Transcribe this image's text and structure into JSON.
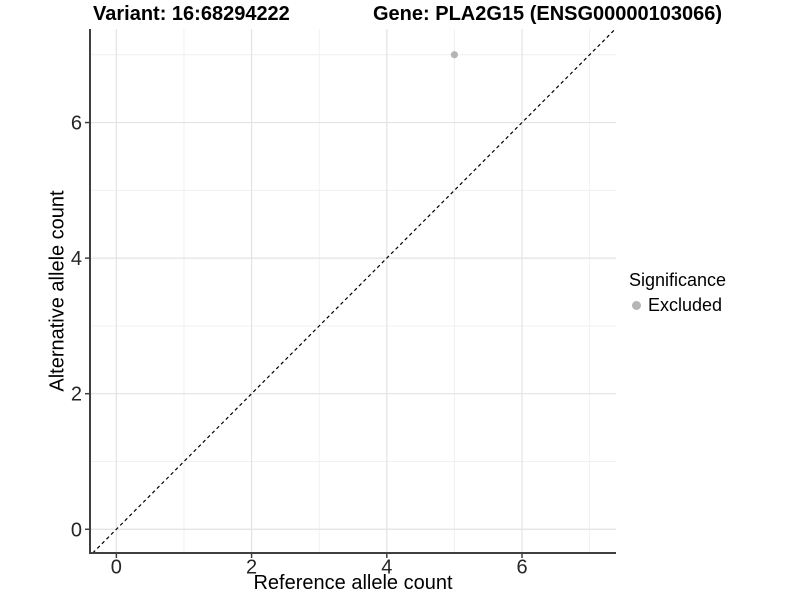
{
  "chart_data": {
    "type": "scatter",
    "title_left": "Variant: 16:68294222",
    "title_right": "Gene: PLA2G15 (ENSG00000103066)",
    "xlabel": "Reference allele count",
    "ylabel": "Alternative allele count",
    "legend_title": "Significance",
    "legend_position": "right",
    "xlim": [
      -0.39,
      7.39
    ],
    "ylim": [
      -0.35,
      7.38
    ],
    "x_ticks": [
      0,
      2,
      4,
      6
    ],
    "y_ticks": [
      0,
      2,
      4,
      6
    ],
    "minor_gridlines": [
      1,
      3,
      5,
      7
    ],
    "grid": "on",
    "series": [
      {
        "name": "Excluded",
        "significance": "Excluded",
        "color": "#b5b5b5",
        "points": [
          {
            "x": 5,
            "y": 7
          }
        ]
      }
    ],
    "reference_line": {
      "type": "identity",
      "equation": "y = x",
      "style": "dashed",
      "color": "#000000"
    }
  },
  "style": {
    "background": "#ffffff",
    "grid_major_color": "#e3e3e3",
    "grid_minor_color": "#efefef",
    "axis_line_color": "#3f3f3f",
    "tick_mark_color": "#3f3f3f",
    "tick_label_color": "#262626",
    "title_color": "#000000",
    "point_color": "#b5b5b5"
  }
}
